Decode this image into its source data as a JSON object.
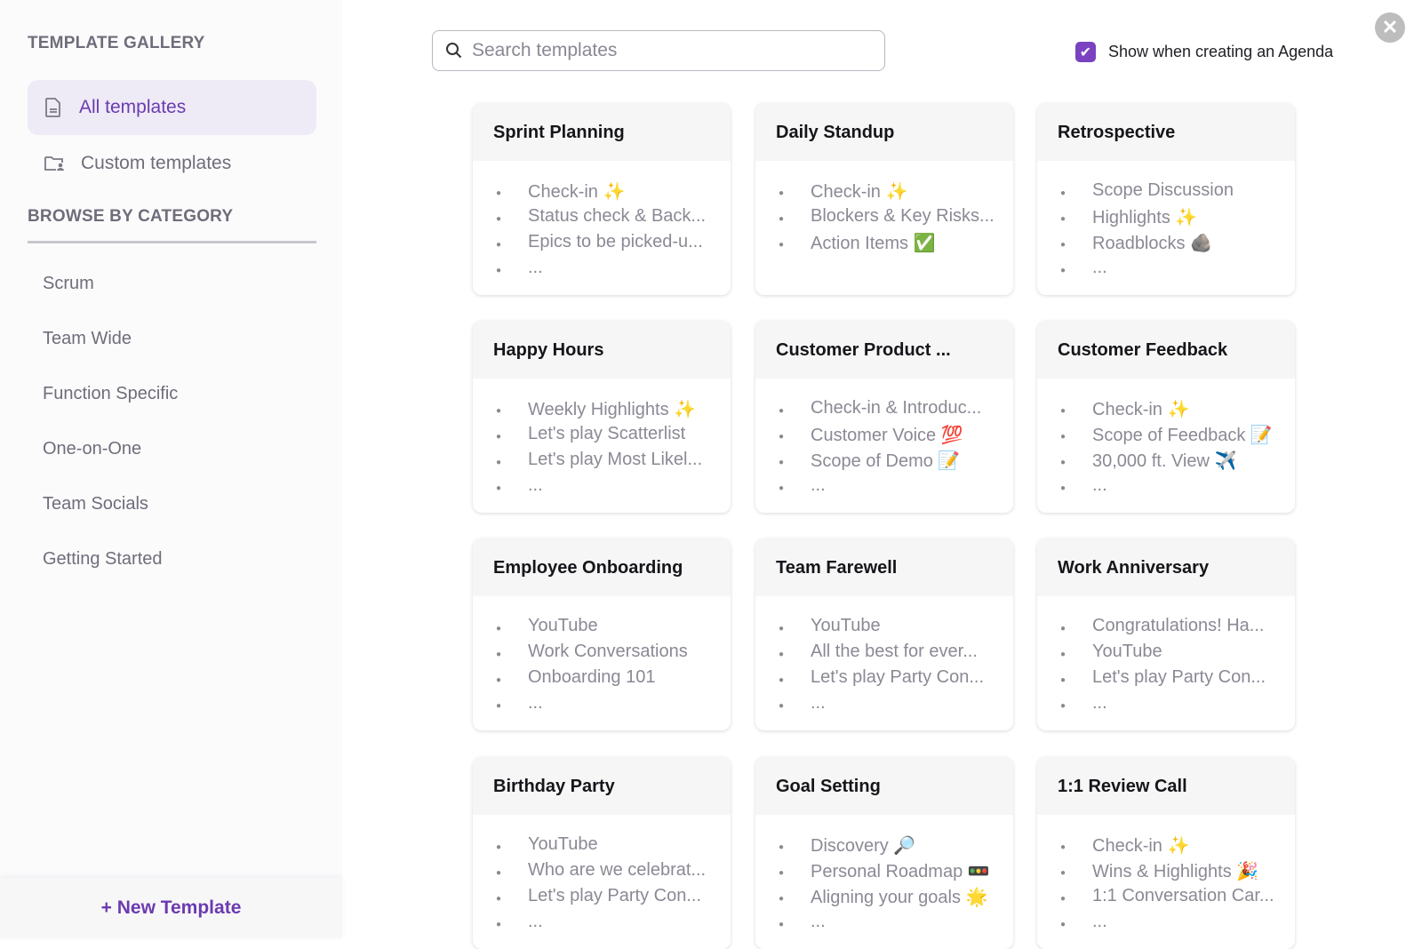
{
  "sidebar": {
    "gallery_title": "TEMPLATE GALLERY",
    "nav": [
      {
        "label": "All templates",
        "icon": "document-icon"
      },
      {
        "label": "Custom templates",
        "icon": "folder-user-icon"
      }
    ],
    "category_title": "BROWSE BY CATEGORY",
    "categories": [
      "Scrum",
      "Team Wide",
      "Function Specific",
      "One-on-One",
      "Team Socials",
      "Getting Started"
    ],
    "new_template": "+ New Template"
  },
  "search": {
    "placeholder": "Search templates",
    "value": ""
  },
  "show_agenda": {
    "label": "Show when creating an Agenda",
    "checked": true
  },
  "accent": "#7a42c0",
  "cards": [
    {
      "title": "Sprint Planning",
      "items": [
        "Check-in ✨",
        "Status check & Back...",
        "Epics to be picked-u...",
        "..."
      ]
    },
    {
      "title": "Daily Standup",
      "items": [
        "Check-in ✨",
        "Blockers & Key Risks...",
        "Action Items ✅"
      ]
    },
    {
      "title": "Retrospective",
      "items": [
        "Scope Discussion",
        "Highlights ✨",
        "Roadblocks 🪨",
        "..."
      ]
    },
    {
      "title": "Happy Hours",
      "items": [
        "Weekly Highlights ✨",
        "Let's play Scatterlist",
        "Let's play Most Likel...",
        "..."
      ]
    },
    {
      "title": "Customer Product ...",
      "items": [
        "Check-in & Introduc...",
        "Customer Voice 💯",
        "Scope of Demo 📝",
        "..."
      ]
    },
    {
      "title": "Customer Feedback",
      "items": [
        "Check-in ✨",
        "Scope of Feedback 📝",
        "30,000 ft. View ✈️",
        "..."
      ]
    },
    {
      "title": "Employee Onboarding",
      "items": [
        "YouTube",
        "Work Conversations",
        "Onboarding 101",
        "..."
      ]
    },
    {
      "title": "Team Farewell",
      "items": [
        "YouTube",
        "All the best for ever...",
        "Let's play Party Con...",
        "..."
      ]
    },
    {
      "title": "Work Anniversary",
      "items": [
        "Congratulations! Ha...",
        "YouTube",
        "Let's play Party Con...",
        "..."
      ]
    },
    {
      "title": "Birthday Party",
      "items": [
        "YouTube",
        "Who are we celebrat...",
        "Let's play Party Con...",
        "..."
      ]
    },
    {
      "title": "Goal Setting",
      "items": [
        "Discovery 🔎",
        "Personal Roadmap 🚥",
        "Aligning your goals 🌟",
        "..."
      ]
    },
    {
      "title": "1:1 Review Call",
      "items": [
        "Check-in ✨",
        "Wins & Highlights 🎉",
        "1:1 Conversation Car...",
        "..."
      ]
    }
  ]
}
